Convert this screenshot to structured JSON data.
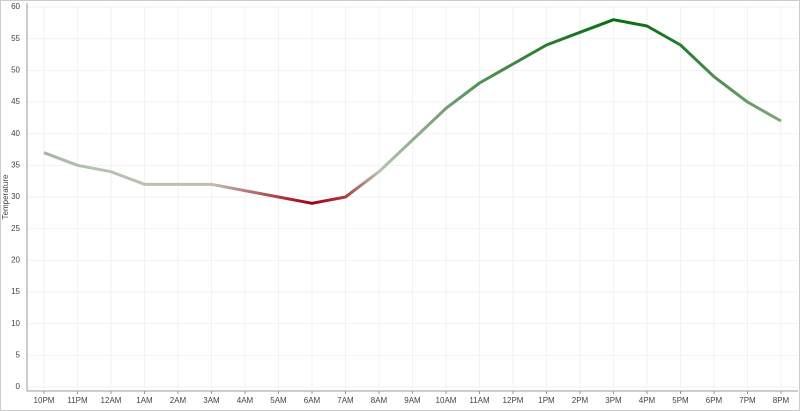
{
  "chart_data": {
    "type": "line",
    "y_label": "Temperature",
    "categories": [
      "10PM",
      "11PM",
      "12AM",
      "1AM",
      "2AM",
      "3AM",
      "4AM",
      "5AM",
      "6AM",
      "7AM",
      "8AM",
      "9AM",
      "10AM",
      "11AM",
      "12PM",
      "1PM",
      "2PM",
      "3PM",
      "4PM",
      "5PM",
      "6PM",
      "7PM",
      "8PM"
    ],
    "values": [
      37,
      35,
      34,
      32,
      32,
      32,
      31,
      30,
      29,
      30,
      34,
      39,
      44,
      48,
      51,
      54,
      56,
      58,
      57,
      54,
      49,
      45,
      42
    ],
    "colors": {
      "low": "#a00010",
      "mid": "#c2cabd",
      "high": "#0b6e14"
    },
    "ylim": [
      0,
      60
    ],
    "yticks": [
      0,
      5,
      10,
      15,
      20,
      25,
      30,
      35,
      40,
      45,
      50,
      55,
      60
    ],
    "grid": true
  }
}
